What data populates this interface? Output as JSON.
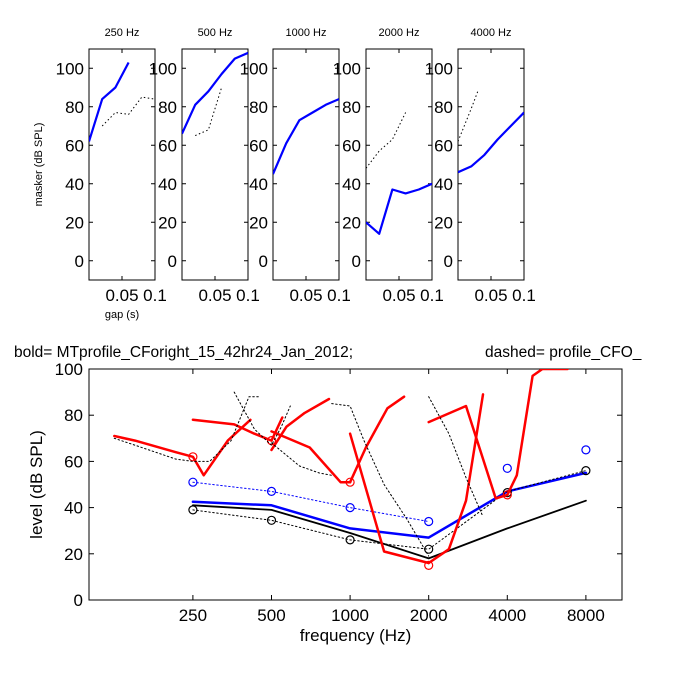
{
  "figure_title": {
    "bold_label": "bold= MTprofile_CForight_15_42hr24_Jan_2012;",
    "dashed_label": "dashed=  profile_CFO_"
  },
  "colors": {
    "blue": "#0000ff",
    "red": "#ff0000",
    "black": "#000000",
    "axis": "#000000"
  },
  "chart_data": [
    {
      "type": "line",
      "title": "250 Hz",
      "ylabel": "masker (dB SPL)",
      "xlabel": "gap (s)",
      "xlim": [
        0,
        0.1
      ],
      "ylim": [
        -10,
        110
      ],
      "xticks": [
        0.05,
        0.1
      ],
      "xtick_labels": [
        "0.05",
        "0.1"
      ],
      "yticks": [
        0,
        20,
        40,
        60,
        80,
        100
      ],
      "ytick_labels": [
        "0",
        "20",
        "40",
        "60",
        "80",
        "100"
      ],
      "series": [
        {
          "style": "solid",
          "color": "#0000ff",
          "x": [
            0,
            0.02,
            0.04,
            0.06
          ],
          "y": [
            62,
            84,
            90,
            103
          ]
        },
        {
          "style": "dotted",
          "color": "#000000",
          "x": [
            0.02,
            0.04,
            0.06,
            0.08,
            0.1
          ],
          "y": [
            70,
            77,
            76,
            85,
            84
          ]
        }
      ]
    },
    {
      "type": "line",
      "title": "500 Hz",
      "xlim": [
        0,
        0.1
      ],
      "ylim": [
        -10,
        110
      ],
      "xticks": [
        0.05,
        0.1
      ],
      "xtick_labels": [
        "0.05",
        "0.1"
      ],
      "yticks": [
        0,
        20,
        40,
        60,
        80,
        100
      ],
      "ytick_labels": [
        "0",
        "20",
        "40",
        "60",
        "80",
        "100"
      ],
      "series": [
        {
          "style": "solid",
          "color": "#0000ff",
          "x": [
            0,
            0.02,
            0.04,
            0.06,
            0.08,
            0.1
          ],
          "y": [
            66,
            81,
            88,
            97,
            105,
            108
          ]
        },
        {
          "style": "dotted",
          "color": "#000000",
          "x": [
            0.02,
            0.04,
            0.06
          ],
          "y": [
            65,
            68,
            90
          ]
        }
      ]
    },
    {
      "type": "line",
      "title": "1000 Hz",
      "xlim": [
        0,
        0.1
      ],
      "ylim": [
        -10,
        110
      ],
      "xticks": [
        0.05,
        0.1
      ],
      "xtick_labels": [
        "0.05",
        "0.1"
      ],
      "yticks": [
        0,
        20,
        40,
        60,
        80,
        100
      ],
      "ytick_labels": [
        "0",
        "20",
        "40",
        "60",
        "80",
        "100"
      ],
      "series": [
        {
          "style": "solid",
          "color": "#0000ff",
          "x": [
            0,
            0.02,
            0.04,
            0.06,
            0.08,
            0.1
          ],
          "y": [
            45,
            61,
            73,
            77,
            81,
            84
          ]
        }
      ]
    },
    {
      "type": "line",
      "title": "2000 Hz",
      "xlim": [
        0,
        0.1
      ],
      "ylim": [
        -10,
        110
      ],
      "xticks": [
        0.05,
        0.1
      ],
      "xtick_labels": [
        "0.05",
        "0.1"
      ],
      "yticks": [
        0,
        20,
        40,
        60,
        80,
        100
      ],
      "ytick_labels": [
        "0",
        "20",
        "40",
        "60",
        "80",
        "100"
      ],
      "series": [
        {
          "style": "solid",
          "color": "#0000ff",
          "x": [
            0,
            0.02,
            0.04,
            0.06,
            0.08,
            0.1
          ],
          "y": [
            20,
            14,
            37,
            35,
            37,
            40
          ]
        },
        {
          "style": "dotted",
          "color": "#000000",
          "x": [
            0,
            0.02,
            0.04,
            0.06
          ],
          "y": [
            48,
            57,
            63,
            77
          ]
        }
      ]
    },
    {
      "type": "line",
      "title": "4000 Hz",
      "xlim": [
        0,
        0.1
      ],
      "ylim": [
        -10,
        110
      ],
      "xticks": [
        0.05,
        0.1
      ],
      "xtick_labels": [
        "0.05",
        "0.1"
      ],
      "yticks": [
        0,
        20,
        40,
        60,
        80,
        100
      ],
      "ytick_labels": [
        "0",
        "20",
        "40",
        "60",
        "80",
        "100"
      ],
      "series": [
        {
          "style": "solid",
          "color": "#0000ff",
          "x": [
            0,
            0.02,
            0.04,
            0.06,
            0.08,
            0.1
          ],
          "y": [
            46,
            49,
            55,
            63,
            70,
            77
          ]
        },
        {
          "style": "dotted",
          "color": "#000000",
          "x": [
            0,
            0.02,
            0.03
          ],
          "y": [
            62,
            79,
            88
          ]
        }
      ]
    },
    {
      "type": "line",
      "xlabel": "frequency (Hz)",
      "ylabel": "level (dB SPL)",
      "xscale": "log",
      "xlim": [
        100,
        11000
      ],
      "ylim": [
        0,
        100
      ],
      "xticks": [
        250,
        500,
        1000,
        2000,
        4000,
        8000
      ],
      "xtick_labels": [
        "250",
        "500",
        "1000",
        "2000",
        "4000",
        "8000"
      ],
      "yticks": [
        0,
        20,
        40,
        60,
        80,
        100
      ],
      "ytick_labels": [
        "0",
        "20",
        "40",
        "60",
        "80",
        "100"
      ],
      "series": [
        {
          "style": "solid-thick",
          "color": "#0000ff",
          "x": [
            250,
            500,
            1000,
            2000,
            4000,
            8000
          ],
          "y": [
            42.5,
            41,
            31,
            27,
            47,
            55
          ]
        },
        {
          "style": "dotted",
          "color": "#0000ff",
          "x": [
            250,
            500,
            1000,
            2000
          ],
          "y": [
            51,
            47,
            40,
            34
          ]
        },
        {
          "style": "markers",
          "marker": "circle",
          "color": "#0000ff",
          "x": [
            250,
            500,
            1000,
            2000,
            4000,
            8000
          ],
          "y": [
            51,
            47,
            40,
            34,
            57,
            65
          ]
        },
        {
          "style": "solid",
          "color": "#000000",
          "x": [
            250,
            500,
            1000,
            2000,
            4000,
            8000
          ],
          "y": [
            41,
            39,
            29,
            18,
            31,
            43
          ]
        },
        {
          "style": "dotted",
          "color": "#000000",
          "x": [
            250,
            500,
            1000,
            2000,
            4000,
            8000
          ],
          "y": [
            39,
            34.5,
            26,
            22,
            47,
            56
          ]
        },
        {
          "style": "markers",
          "marker": "circle",
          "color": "#000000",
          "x": [
            250,
            500,
            1000,
            2000,
            4000,
            8000
          ],
          "y": [
            39,
            34.5,
            26,
            22,
            46.5,
            56
          ]
        },
        {
          "style": "markers",
          "marker": "circle",
          "color": "#ff0000",
          "x": [
            250,
            500,
            1000,
            2000,
            4000
          ],
          "y": [
            62,
            69,
            51,
            15,
            45.5
          ]
        },
        {
          "style": "solid-thick",
          "color": "#ff0000",
          "x": [
            125,
            150,
            215,
            250,
            275,
            340,
            415
          ],
          "y": [
            71,
            69,
            64,
            62,
            54,
            69,
            78
          ]
        },
        {
          "style": "solid-thick",
          "color": "#ff0000",
          "x": [
            250,
            360,
            430,
            500,
            550
          ],
          "y": [
            78,
            76,
            72,
            69,
            79
          ]
        },
        {
          "style": "solid-thick",
          "color": "#ff0000",
          "x": [
            500,
            700,
            920,
            1000
          ],
          "y": [
            73,
            66,
            51,
            51
          ]
        },
        {
          "style": "solid-thick",
          "color": "#ff0000",
          "x": [
            500,
            570,
            670,
            830
          ],
          "y": [
            65,
            75,
            81,
            87
          ]
        },
        {
          "style": "solid-thick",
          "color": "#ff0000",
          "x": [
            1000,
            1350,
            2000
          ],
          "y": [
            72,
            21,
            16
          ]
        },
        {
          "style": "solid-thick",
          "color": "#ff0000",
          "x": [
            1000,
            1150,
            1390,
            1610
          ],
          "y": [
            51,
            66,
            83,
            88
          ]
        },
        {
          "style": "solid-thick",
          "color": "#ff0000",
          "x": [
            2000,
            2390,
            2780,
            3230
          ],
          "y": [
            16,
            22,
            43,
            89
          ]
        },
        {
          "style": "solid-thick",
          "color": "#ff0000",
          "x": [
            2000,
            2780,
            3610,
            4000
          ],
          "y": [
            77,
            84,
            44,
            45.5
          ]
        },
        {
          "style": "solid-thick",
          "color": "#ff0000",
          "x": [
            4000,
            4350,
            5000,
            5450,
            6250,
            6800
          ],
          "y": [
            45.5,
            54,
            97,
            100,
            100,
            100
          ]
        },
        {
          "style": "dotted",
          "color": "#000000",
          "x": [
            125,
            150,
            215,
            250,
            290,
            350,
            410,
            450
          ],
          "y": [
            70,
            67,
            61,
            60,
            60,
            69,
            88,
            88
          ]
        },
        {
          "style": "dotted",
          "color": "#000000",
          "x": [
            360,
            430,
            500,
            545,
            590
          ],
          "y": [
            90,
            74,
            67,
            75,
            84
          ]
        },
        {
          "style": "dotted",
          "color": "#000000",
          "x": [
            500,
            640,
            760,
            850
          ],
          "y": [
            68,
            58,
            55,
            54
          ]
        },
        {
          "style": "dotted",
          "color": "#000000",
          "x": [
            850,
            1000,
            1130,
            1350,
            1650,
            2000
          ],
          "y": [
            85,
            84,
            69,
            50,
            35,
            19
          ]
        },
        {
          "style": "dotted",
          "color": "#000000",
          "x": [
            2000,
            2390,
            2780,
            3230
          ],
          "y": [
            88,
            72,
            53,
            36
          ]
        }
      ]
    }
  ]
}
